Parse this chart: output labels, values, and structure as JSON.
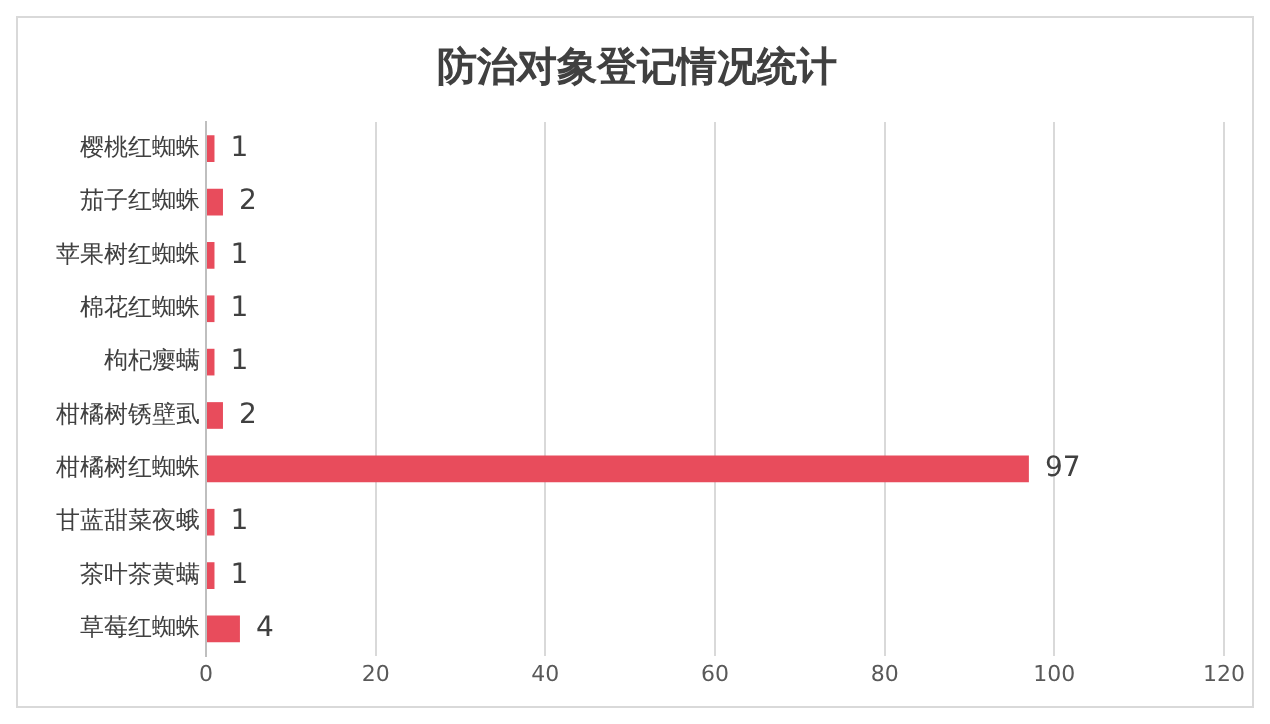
{
  "chart_data": {
    "type": "bar",
    "orientation": "horizontal",
    "title": "防治对象登记情况统计",
    "categories": [
      "樱桃红蜘蛛",
      "茄子红蜘蛛",
      "苹果树红蜘蛛",
      "棉花红蜘蛛",
      "枸杞瘿螨",
      "柑橘树锈壁虱",
      "柑橘树红蜘蛛",
      "甘蓝甜菜夜蛾",
      "茶叶茶黄螨",
      "草莓红蜘蛛"
    ],
    "values": [
      1,
      2,
      1,
      1,
      1,
      2,
      97,
      1,
      1,
      4
    ],
    "color": "#e84c5c",
    "xlim": [
      0,
      120
    ],
    "xticks": [
      0,
      20,
      40,
      60,
      80,
      100,
      120
    ],
    "grid": "x",
    "legend": false,
    "data_labels": true
  }
}
